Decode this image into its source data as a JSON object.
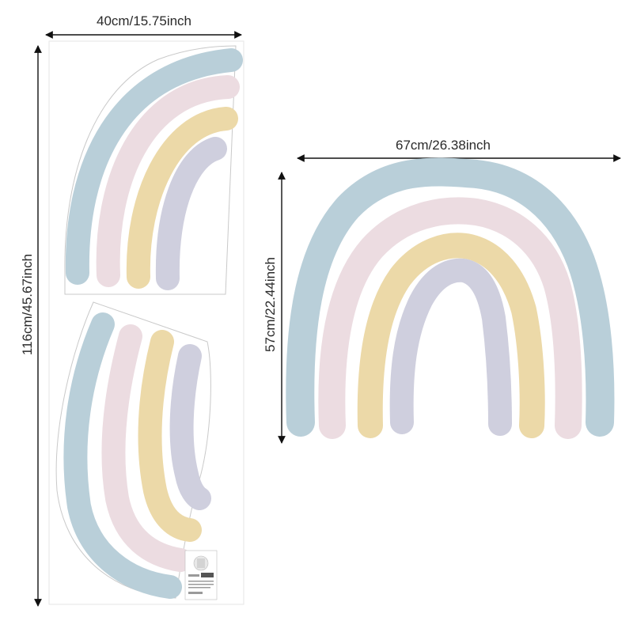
{
  "dimensions": {
    "sheet_width": "40cm/15.75inch",
    "sheet_height": "116cm/45.67inch",
    "rainbow_width": "67cm/26.38inch",
    "rainbow_height": "57cm/22.44inch"
  },
  "colors": {
    "blue": "#b9cfd9",
    "pink": "#ecdce1",
    "yellow": "#ecd9a8",
    "lavender": "#cfcfde",
    "sheet_outline": "#c9c9c9"
  },
  "icons": {
    "product_label": "sticker-label-icon"
  }
}
